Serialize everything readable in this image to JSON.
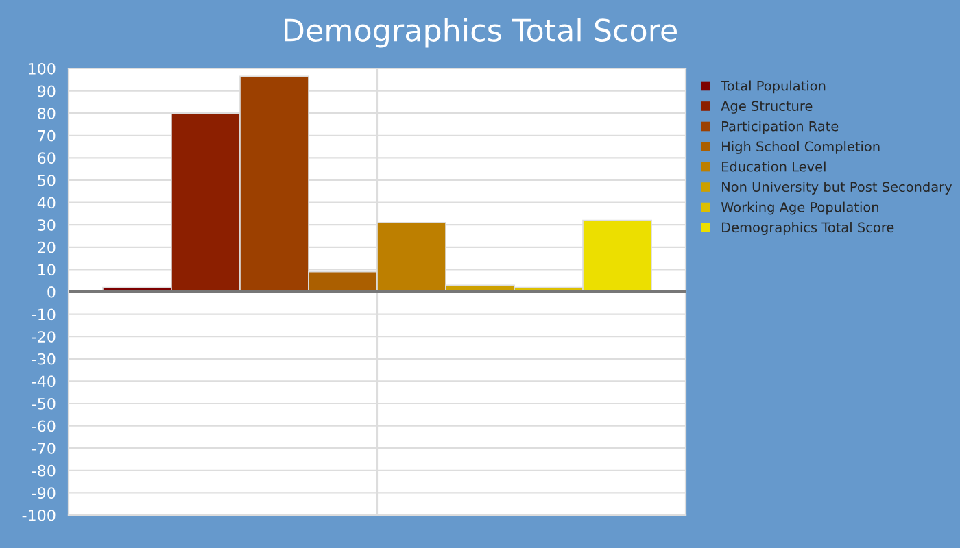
{
  "chart_data": {
    "type": "bar",
    "title": "Demographics Total Score",
    "categories": [
      null
    ],
    "series": [
      {
        "name": "Total Population",
        "color": "#7d0000",
        "values": [
          2
        ]
      },
      {
        "name": "Age Structure",
        "color": "#8c1f00",
        "values": [
          80
        ]
      },
      {
        "name": "Participation Rate",
        "color": "#9c4000",
        "values": [
          96.5
        ]
      },
      {
        "name": "High School Completion",
        "color": "#ab5f00",
        "values": [
          9
        ]
      },
      {
        "name": "Education Level",
        "color": "#bd7f00",
        "values": [
          31
        ]
      },
      {
        "name": "Non University but Post Secondary",
        "color": "#cda000",
        "values": [
          3
        ]
      },
      {
        "name": "Working Age Population",
        "color": "#dcbf00",
        "values": [
          2
        ]
      },
      {
        "name": "Demographics Total Score",
        "color": "#ecdf00",
        "values": [
          32
        ]
      }
    ],
    "ylim": [
      -100,
      100
    ],
    "yticks": [
      -100,
      -90,
      -80,
      -70,
      -60,
      -50,
      -40,
      -30,
      -20,
      -10,
      0,
      10,
      20,
      30,
      40,
      50,
      60,
      70,
      80,
      90,
      100
    ],
    "grid": true,
    "legend": "right",
    "tick_labels": "y"
  }
}
